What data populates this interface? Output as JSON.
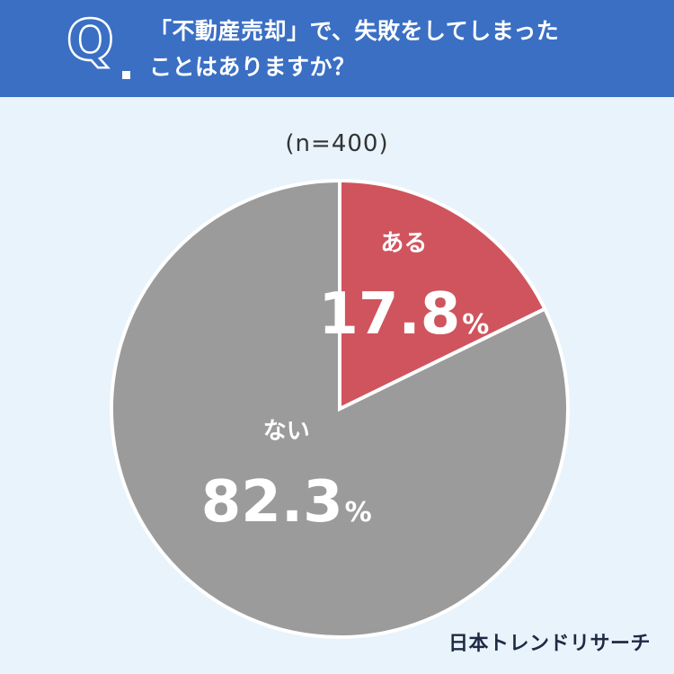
{
  "question": {
    "mark": "Q",
    "line1": "「不動産売却」で、失敗をしてしまった",
    "line2": "ことはありますか？"
  },
  "sample_size": "(n=400)",
  "brand": "日本トレンドリサーチ",
  "colors": {
    "header": "#3a6fc4",
    "background": "#e8f3fb",
    "yes": "#d0545d",
    "no": "#9b9b9b"
  },
  "chart_data": {
    "type": "pie",
    "categories": [
      "ある",
      "ない"
    ],
    "values": [
      17.8,
      82.3
    ],
    "value_labels": [
      "17.8",
      "82.3"
    ],
    "unit": "%",
    "start": "top, clockwise"
  }
}
